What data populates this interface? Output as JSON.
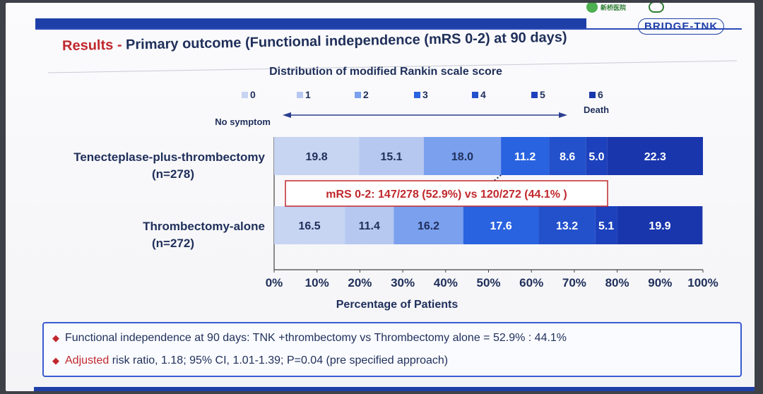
{
  "header": {
    "hospital_logo_text": "新桥医院",
    "brand": "BRIDGE-TNK",
    "title_prefix": "Results",
    "title_sep": "-",
    "title_main": "Primary outcome (Functional independence (mRS 0-2) at 90 days)"
  },
  "colors": {
    "mrs0": "#c7d4f2",
    "mrs1": "#b6c8f0",
    "mrs2": "#7aa0ee",
    "mrs3": "#2a63e0",
    "mrs4": "#2351cc",
    "mrs5": "#1d41bd",
    "mrs6": "#1a36ad"
  },
  "chart_data": {
    "type": "bar",
    "orientation": "horizontal",
    "stacked": true,
    "title": "Distribution of modified Rankin scale score",
    "xlabel": "Percentage of Patients",
    "xlim": [
      0,
      100
    ],
    "xticks": [
      "0%",
      "10%",
      "20%",
      "30%",
      "40%",
      "50%",
      "60%",
      "70%",
      "80%",
      "90%",
      "100%"
    ],
    "scale_left_label": "No symptom",
    "scale_right_label": "Death",
    "legend": [
      "0",
      "1",
      "2",
      "3",
      "4",
      "5",
      "6"
    ],
    "legend_position": "top",
    "categories": [
      {
        "name": "Tenecteplase-plus-thrombectomy",
        "n": "(n=278)"
      },
      {
        "name": "Thrombectomy-alone",
        "n": "(n=272)"
      }
    ],
    "series": [
      {
        "name": "0",
        "values": [
          19.8,
          16.5
        ]
      },
      {
        "name": "1",
        "values": [
          15.1,
          11.4
        ]
      },
      {
        "name": "2",
        "values": [
          18.0,
          16.2
        ]
      },
      {
        "name": "3",
        "values": [
          11.2,
          17.6
        ]
      },
      {
        "name": "4",
        "values": [
          8.6,
          13.2
        ]
      },
      {
        "name": "5",
        "values": [
          5.0,
          5.1
        ]
      },
      {
        "name": "6",
        "values": [
          22.3,
          19.9
        ]
      }
    ],
    "annotation": "mRS 0-2: 147/278 (52.9%) vs 120/272 (44.1% )"
  },
  "notes": {
    "line1": "Functional independence at 90 days: TNK +thrombectomy vs Thrombectomy alone = 52.9% : 44.1%",
    "line2_a": "Adjusted",
    "line2_b": " risk ratio, 1.18; 95% CI, 1.01-1.39; P=0.04 (pre specified approach)"
  }
}
